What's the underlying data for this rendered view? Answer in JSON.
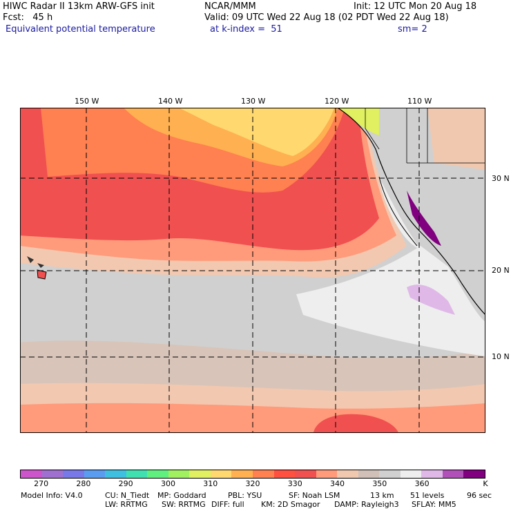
{
  "header": {
    "line1_left": "HIWC Radar II 13km ARW-GFS init",
    "line1_center": "NCAR/MMM",
    "line1_right": "Init: 12 UTC Mon 20 Aug 18",
    "line2_left": "Fcst:   45 h",
    "line2_right": "Valid: 09 UTC Wed 22 Aug 18 (02 PDT Wed 22 Aug 18)",
    "line3_left": "Equivalent potential temperature",
    "line3_center": "at k-index =  51",
    "line3_right": "sm= 2"
  },
  "map": {
    "lon_labels": [
      "150 W",
      "140 W",
      "130 W",
      "120 W",
      "110 W"
    ],
    "lat_labels": [
      "30 N",
      "20 N",
      "10 N"
    ]
  },
  "colorbar": {
    "colors": [
      "#cc55cc",
      "#a070d0",
      "#7878e8",
      "#5a9cf0",
      "#40c0e0",
      "#40e0b0",
      "#60f080",
      "#a0f060",
      "#e0f060",
      "#ffd870",
      "#ffb050",
      "#ff8050",
      "#ff5040",
      "#f05050",
      "#ff9a7a",
      "#f0c8b0",
      "#d0c0b8",
      "#d0d0d0",
      "#eeeeee",
      "#e0b8e8",
      "#b050b8",
      "#800080"
    ],
    "labels": [
      "270",
      "280",
      "290",
      "300",
      "310",
      "320",
      "330",
      "340",
      "350",
      "360",
      "K"
    ]
  },
  "footer": {
    "line1": [
      "Model Info: V4.0",
      "CU: N_Tiedt",
      "MP: Goddard",
      "PBL: YSU",
      "SF: Noah LSM",
      "13 km",
      "51 levels",
      "96 sec"
    ],
    "line2": [
      "LW: RRTMG",
      "SW: RRTMG",
      "DIFF: full",
      "KM: 2D Smagor",
      "DAMP: Rayleigh3",
      "SFLAY: MM5"
    ]
  }
}
